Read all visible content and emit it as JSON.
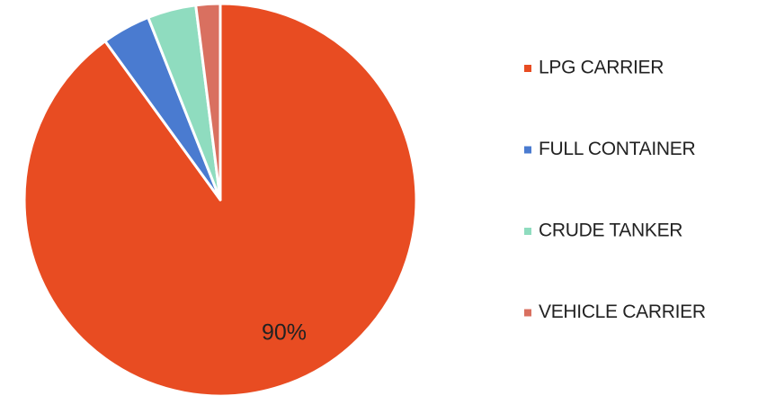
{
  "chart_data": {
    "type": "pie",
    "categories": [
      "LPG CARRIER",
      "FULL CONTAINER",
      "CRUDE TANKER",
      "VEHICLE CARRIER"
    ],
    "values": [
      90,
      4,
      4,
      2
    ],
    "value_labels": [
      "90%",
      null,
      null,
      null
    ],
    "colors": [
      "#e84c22",
      "#4a7bd0",
      "#8fdcbf",
      "#d97060"
    ],
    "legend": "right"
  }
}
